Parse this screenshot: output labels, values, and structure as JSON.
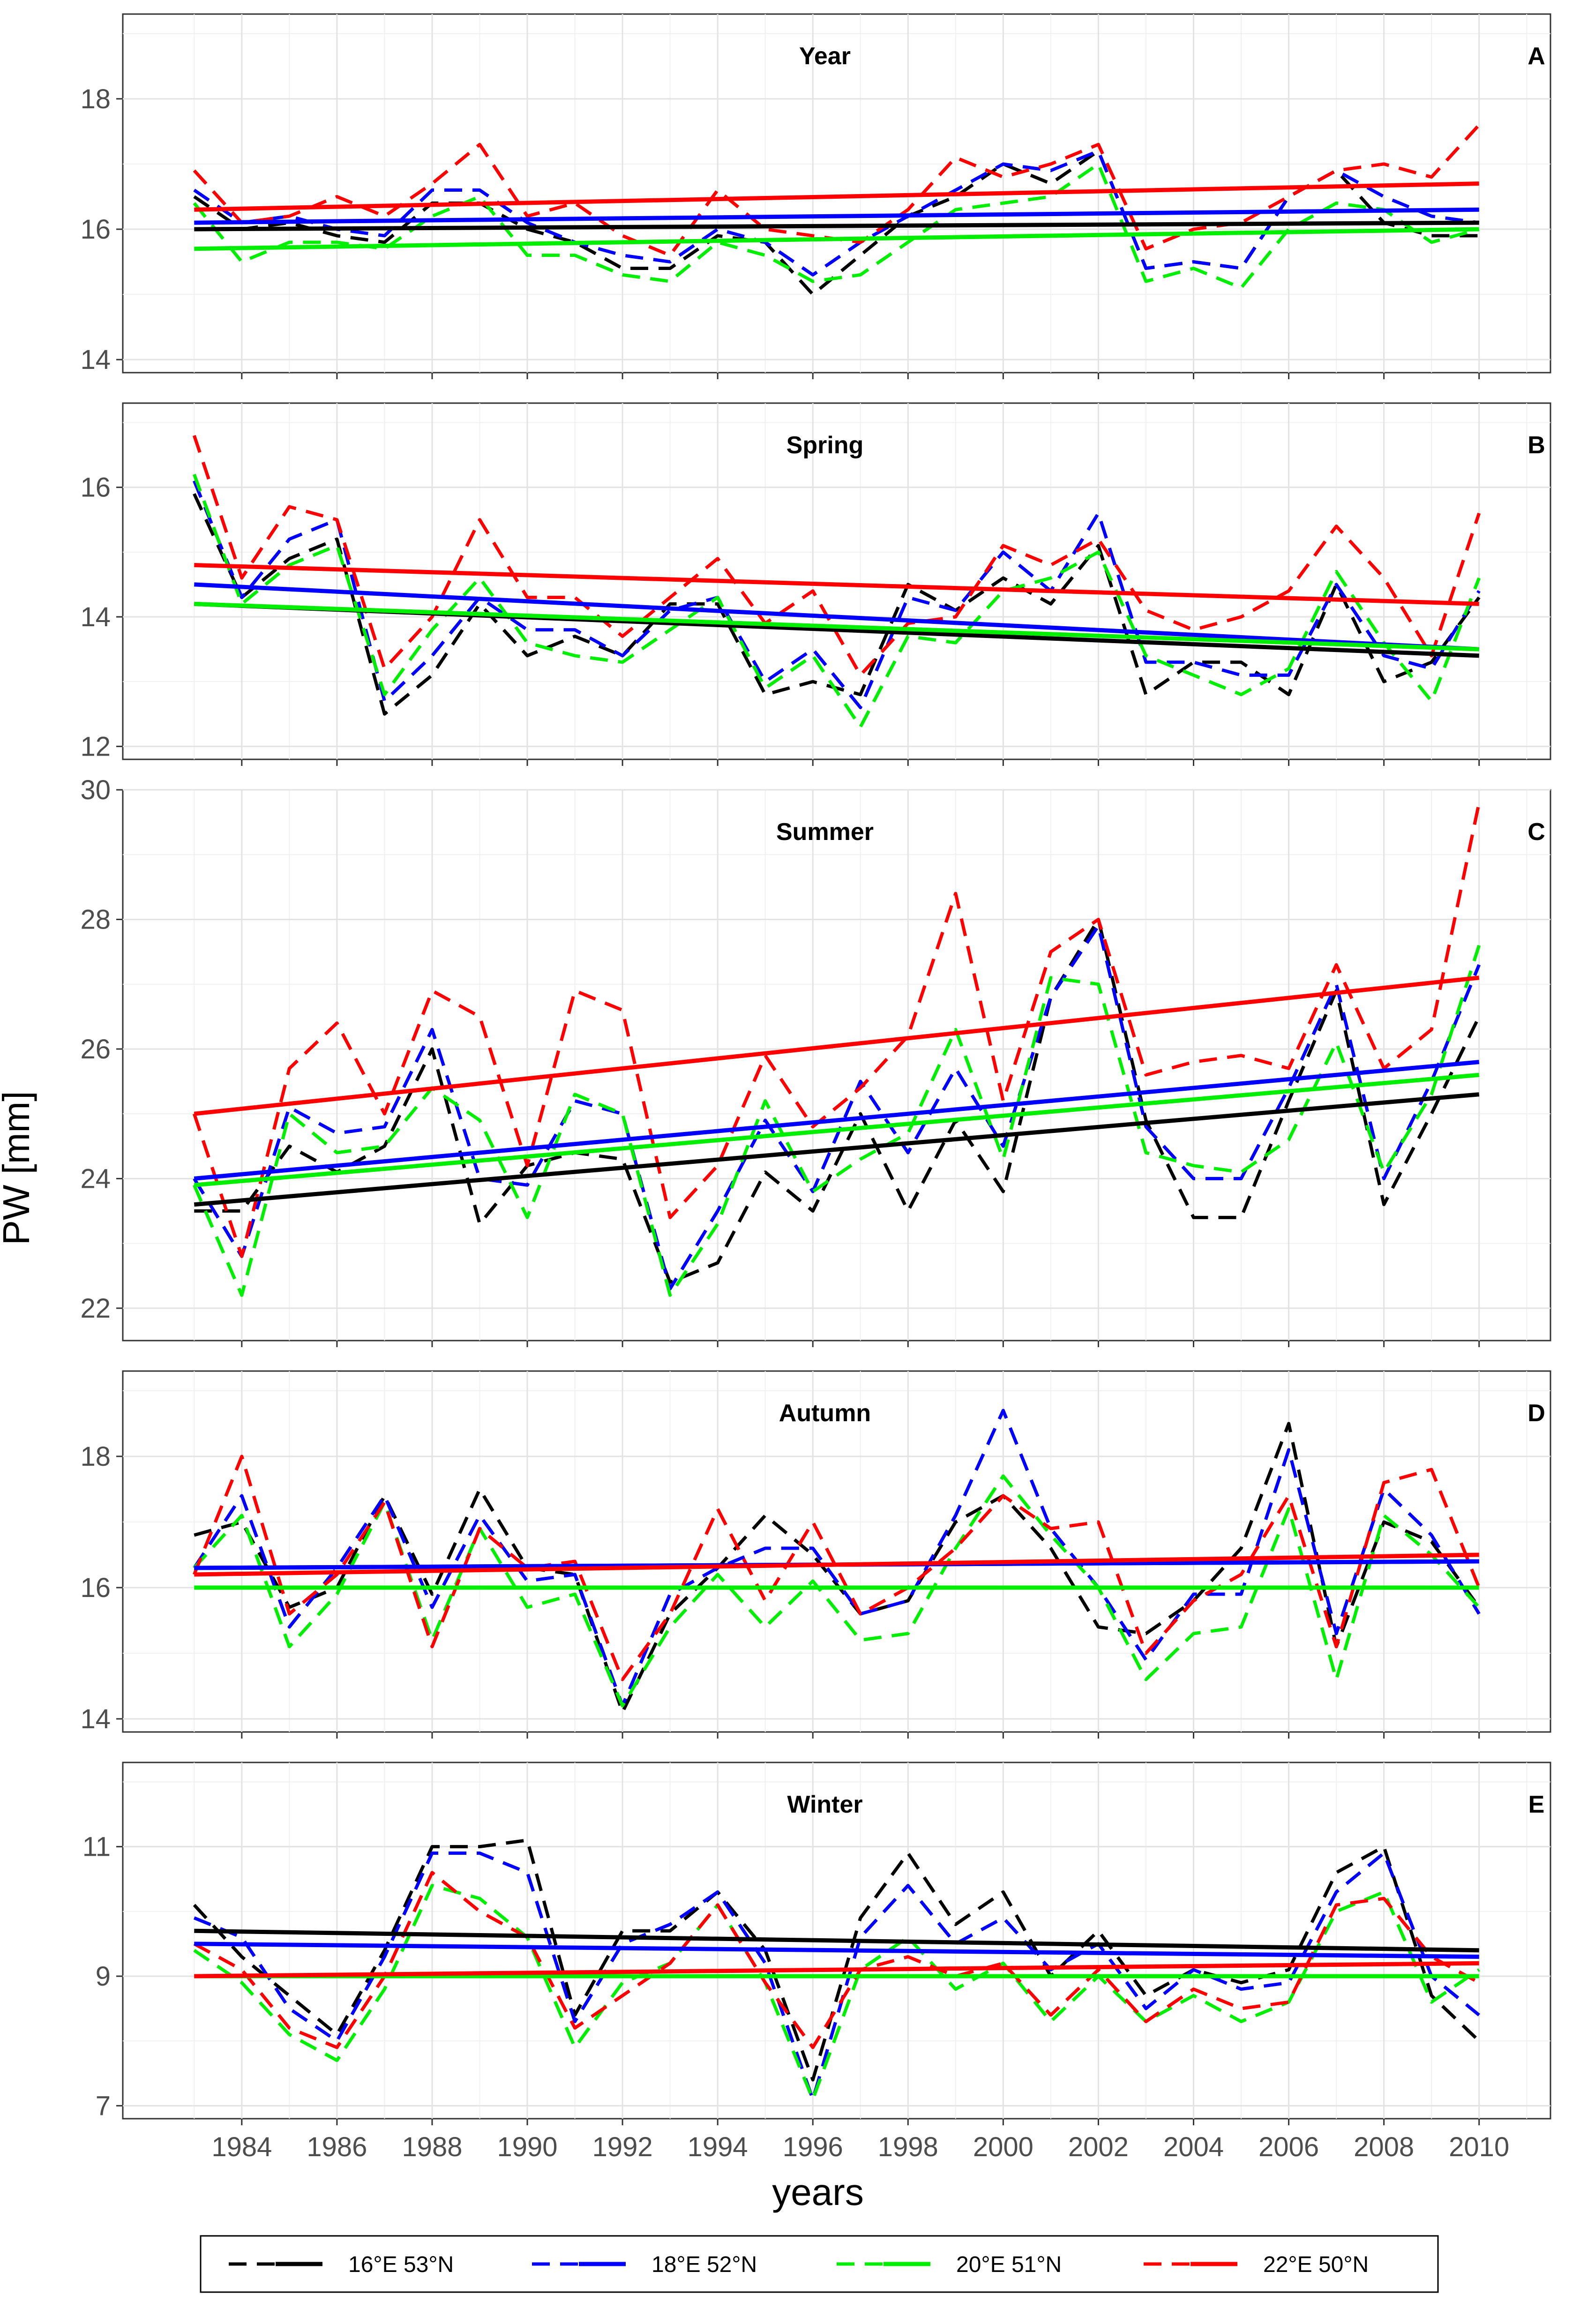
{
  "chart_data": {
    "type": "line",
    "ylabel": "PW [mm]",
    "xlabel": "years",
    "x_ticks": [
      "1984",
      "1986",
      "1988",
      "1990",
      "1992",
      "1994",
      "1996",
      "1998",
      "2000",
      "2002",
      "2004",
      "2006",
      "2008",
      "2010"
    ],
    "xlim": [
      1981.5,
      2011.5
    ],
    "years": [
      1983,
      1984,
      1985,
      1986,
      1987,
      1988,
      1989,
      1990,
      1991,
      1992,
      1993,
      1994,
      1995,
      1996,
      1997,
      1998,
      1999,
      2000,
      2001,
      2002,
      2003,
      2004,
      2005,
      2006,
      2007,
      2008,
      2009,
      2010
    ],
    "series_meta": [
      {
        "name": "16°E 53°N",
        "color": "#000000"
      },
      {
        "name": "18°E 52°N",
        "color": "#0000ff"
      },
      {
        "name": "20°E 51°N",
        "color": "#00ee00"
      },
      {
        "name": "22°E 50°N",
        "color": "#ff0000"
      }
    ],
    "legend_position": "bottom",
    "panels": [
      {
        "title": "Year",
        "letter": "A",
        "ylim": [
          13.8,
          19.3
        ],
        "y_ticks": [
          14,
          16,
          18
        ],
        "series": [
          {
            "name": "16°E 53°N",
            "values": [
              16.5,
              16.0,
              16.1,
              15.9,
              15.8,
              16.4,
              16.4,
              16.0,
              15.8,
              15.4,
              15.4,
              15.9,
              15.8,
              15.0,
              15.6,
              16.2,
              16.5,
              17.0,
              16.7,
              17.2,
              15.4,
              15.5,
              15.4,
              16.5,
              16.9,
              16.1,
              15.9,
              15.9
            ],
            "trend": [
              16.0,
              16.1
            ]
          },
          {
            "name": "18°E 52°N",
            "values": [
              16.6,
              16.1,
              16.2,
              16.0,
              15.9,
              16.6,
              16.6,
              16.1,
              15.8,
              15.6,
              15.5,
              16.0,
              15.8,
              15.3,
              15.8,
              16.2,
              16.6,
              17.0,
              16.9,
              17.2,
              15.4,
              15.5,
              15.4,
              16.5,
              16.9,
              16.5,
              16.2,
              16.1
            ],
            "trend": [
              16.1,
              16.3
            ]
          },
          {
            "name": "20°E 51°N",
            "values": [
              16.4,
              15.5,
              15.8,
              15.8,
              15.7,
              16.2,
              16.5,
              15.6,
              15.6,
              15.3,
              15.2,
              15.8,
              15.6,
              15.2,
              15.3,
              15.8,
              16.3,
              16.4,
              16.5,
              17.0,
              15.2,
              15.4,
              15.1,
              16.0,
              16.4,
              16.3,
              15.8,
              16.0
            ],
            "trend": [
              15.7,
              16.0
            ]
          },
          {
            "name": "22°E 50°N",
            "values": [
              16.9,
              16.1,
              16.2,
              16.5,
              16.2,
              16.7,
              17.3,
              16.2,
              16.4,
              15.9,
              15.6,
              16.6,
              16.0,
              15.9,
              15.8,
              16.3,
              17.1,
              16.8,
              17.0,
              17.3,
              15.7,
              16.0,
              16.1,
              16.5,
              16.9,
              17.0,
              16.8,
              17.6
            ],
            "trend": [
              16.3,
              16.7
            ]
          }
        ]
      },
      {
        "title": "Spring",
        "letter": "B",
        "ylim": [
          11.8,
          17.3
        ],
        "y_ticks": [
          12,
          14,
          16
        ],
        "series": [
          {
            "name": "16°E 53°N",
            "values": [
              15.9,
              14.3,
              14.9,
              15.2,
              12.5,
              13.1,
              14.2,
              13.4,
              13.7,
              13.4,
              14.2,
              14.2,
              12.8,
              13.0,
              12.8,
              14.5,
              14.1,
              14.6,
              14.2,
              15.1,
              12.8,
              13.3,
              13.3,
              12.8,
              14.5,
              13.0,
              13.3,
              14.3
            ],
            "trend": [
              14.2,
              13.4
            ]
          },
          {
            "name": "18°E 52°N",
            "values": [
              16.1,
              14.3,
              15.2,
              15.5,
              12.7,
              13.4,
              14.3,
              13.8,
              13.8,
              13.4,
              14.1,
              14.3,
              13.0,
              13.5,
              12.6,
              14.3,
              14.1,
              15.0,
              14.4,
              15.6,
              13.3,
              13.3,
              13.1,
              13.1,
              14.5,
              13.4,
              13.2,
              14.4
            ],
            "trend": [
              14.5,
              13.5
            ]
          },
          {
            "name": "20°E 51°N",
            "values": [
              16.2,
              14.2,
              14.8,
              15.1,
              12.8,
              13.8,
              14.6,
              13.6,
              13.4,
              13.3,
              13.8,
              14.3,
              12.9,
              13.4,
              12.3,
              13.7,
              13.6,
              14.4,
              14.6,
              15.0,
              13.4,
              13.1,
              12.8,
              13.2,
              14.7,
              13.6,
              12.7,
              14.6
            ],
            "trend": [
              14.2,
              13.5
            ]
          },
          {
            "name": "22°E 50°N",
            "values": [
              16.8,
              14.6,
              15.7,
              15.5,
              13.2,
              14.0,
              15.5,
              14.3,
              14.3,
              13.7,
              14.3,
              14.9,
              13.9,
              14.4,
              13.1,
              13.9,
              14.0,
              15.1,
              14.8,
              15.2,
              14.1,
              13.8,
              14.0,
              14.4,
              15.4,
              14.6,
              13.4,
              15.6
            ],
            "trend": [
              14.8,
              14.2
            ]
          }
        ]
      },
      {
        "title": "Summer",
        "letter": "C",
        "ylim": [
          21.5,
          30.0
        ],
        "y_ticks": [
          22,
          24,
          26,
          28,
          30
        ],
        "series": [
          {
            "name": "16°E 53°N",
            "values": [
              23.5,
              23.5,
              24.5,
              24.1,
              24.5,
              26.0,
              23.3,
              24.2,
              24.4,
              24.3,
              22.4,
              22.7,
              24.1,
              23.5,
              25.0,
              23.5,
              24.9,
              23.8,
              26.8,
              28.0,
              24.9,
              23.4,
              23.4,
              25.2,
              26.9,
              23.6,
              25.0,
              26.5
            ],
            "trend": [
              23.6,
              25.3
            ]
          },
          {
            "name": "18°E 52°N",
            "values": [
              24.0,
              22.8,
              25.1,
              24.7,
              24.8,
              26.3,
              24.0,
              23.9,
              25.2,
              25.0,
              22.3,
              23.5,
              24.9,
              23.8,
              25.5,
              24.4,
              25.7,
              24.5,
              26.8,
              27.9,
              24.8,
              24.0,
              24.0,
              25.4,
              27.0,
              24.0,
              25.5,
              27.3
            ],
            "trend": [
              24.0,
              25.8
            ]
          },
          {
            "name": "20°E 51°N",
            "values": [
              23.9,
              22.2,
              25.0,
              24.4,
              24.5,
              25.4,
              24.9,
              23.4,
              25.3,
              25.0,
              22.2,
              23.3,
              25.2,
              23.8,
              24.3,
              24.7,
              26.3,
              24.3,
              27.1,
              27.0,
              24.4,
              24.2,
              24.1,
              24.6,
              26.1,
              24.1,
              25.3,
              27.6
            ],
            "trend": [
              23.9,
              25.6
            ]
          },
          {
            "name": "22°E 50°N",
            "values": [
              25.0,
              22.8,
              25.7,
              26.4,
              25.0,
              26.9,
              26.5,
              24.2,
              26.9,
              26.6,
              23.4,
              24.2,
              25.9,
              24.8,
              25.4,
              26.2,
              28.4,
              25.2,
              27.5,
              28.0,
              25.6,
              25.8,
              25.9,
              25.7,
              27.3,
              25.7,
              26.3,
              29.8
            ],
            "trend": [
              25.0,
              27.1
            ]
          }
        ]
      },
      {
        "title": "Autumn",
        "letter": "D",
        "ylim": [
          13.8,
          19.3
        ],
        "y_ticks": [
          14,
          16,
          18
        ],
        "series": [
          {
            "name": "16°E 53°N",
            "values": [
              16.8,
              17.0,
              15.7,
              16.0,
              17.4,
              15.9,
              17.5,
              16.3,
              16.2,
              14.1,
              15.6,
              16.3,
              17.1,
              16.5,
              15.6,
              15.8,
              17.0,
              17.4,
              16.6,
              15.4,
              15.3,
              15.8,
              16.6,
              18.5,
              15.1,
              17.0,
              16.7,
              15.7
            ],
            "trend": [
              16.3,
              16.4
            ]
          },
          {
            "name": "18°E 52°N",
            "values": [
              16.3,
              17.4,
              15.4,
              16.3,
              17.4,
              15.7,
              17.1,
              16.1,
              16.2,
              14.2,
              15.9,
              16.3,
              16.6,
              16.6,
              15.6,
              15.8,
              17.1,
              18.7,
              16.9,
              16.0,
              14.9,
              15.9,
              15.9,
              18.1,
              15.3,
              17.5,
              16.8,
              15.6
            ],
            "trend": [
              16.3,
              16.4
            ]
          },
          {
            "name": "20°E 51°N",
            "values": [
              16.3,
              17.1,
              15.1,
              15.9,
              17.3,
              15.2,
              16.9,
              15.7,
              15.9,
              14.2,
              15.4,
              16.2,
              15.4,
              16.1,
              15.2,
              15.3,
              16.6,
              17.7,
              16.8,
              16.0,
              14.6,
              15.3,
              15.4,
              17.2,
              14.6,
              17.1,
              16.5,
              15.7
            ],
            "trend": [
              16.0,
              16.0
            ]
          },
          {
            "name": "22°E 50°N",
            "values": [
              16.2,
              18.0,
              15.6,
              16.2,
              17.3,
              15.1,
              16.9,
              16.3,
              16.4,
              14.6,
              15.6,
              17.2,
              15.8,
              17.0,
              15.6,
              16.0,
              16.6,
              17.4,
              16.9,
              17.0,
              15.0,
              15.8,
              16.2,
              17.4,
              15.1,
              17.6,
              17.8,
              16.0
            ],
            "trend": [
              16.2,
              16.5
            ]
          }
        ]
      },
      {
        "title": "Winter",
        "letter": "E",
        "ylim": [
          6.8,
          12.3
        ],
        "y_ticks": [
          7,
          9,
          11
        ],
        "series": [
          {
            "name": "16°E 53°N",
            "values": [
              10.1,
              9.3,
              8.7,
              8.1,
              9.4,
              11.0,
              11.0,
              11.1,
              8.4,
              9.7,
              9.7,
              10.3,
              9.4,
              7.4,
              9.9,
              10.9,
              9.8,
              10.3,
              9.0,
              9.7,
              8.7,
              9.1,
              8.9,
              9.1,
              10.6,
              11.0,
              8.7,
              8.0
            ],
            "trend": [
              9.7,
              9.4
            ]
          },
          {
            "name": "18°E 52°N",
            "values": [
              9.9,
              9.6,
              8.5,
              8.0,
              9.3,
              10.9,
              10.9,
              10.6,
              8.3,
              9.5,
              9.8,
              10.3,
              9.2,
              7.1,
              9.6,
              10.4,
              9.5,
              9.9,
              9.1,
              9.5,
              8.5,
              9.1,
              8.8,
              8.9,
              10.3,
              10.9,
              9.0,
              8.4
            ],
            "trend": [
              9.5,
              9.3
            ]
          },
          {
            "name": "20°E 51°N",
            "values": [
              9.4,
              8.9,
              8.1,
              7.7,
              8.8,
              10.4,
              10.2,
              9.6,
              7.9,
              8.9,
              9.2,
              10.1,
              8.9,
              7.1,
              9.1,
              9.6,
              8.8,
              9.2,
              8.3,
              9.0,
              8.3,
              8.7,
              8.3,
              8.6,
              10.0,
              10.3,
              8.6,
              9.1
            ],
            "trend": [
              9.0,
              9.0
            ]
          },
          {
            "name": "22°E 50°N",
            "values": [
              9.5,
              9.1,
              8.2,
              7.9,
              9.0,
              10.6,
              10.0,
              9.6,
              8.2,
              8.7,
              9.2,
              10.1,
              8.9,
              7.9,
              9.1,
              9.3,
              9.0,
              9.2,
              8.4,
              9.1,
              8.3,
              8.8,
              8.5,
              8.6,
              10.1,
              10.2,
              9.3,
              8.9
            ],
            "trend": [
              9.0,
              9.2
            ]
          }
        ]
      }
    ]
  }
}
